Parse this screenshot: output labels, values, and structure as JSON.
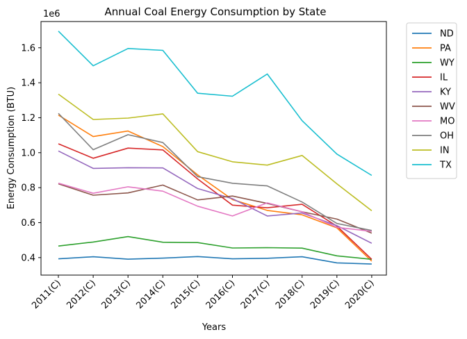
{
  "chart_data": {
    "type": "line",
    "title": "Annual Coal Energy Consumption by State",
    "xlabel": "Years",
    "ylabel": "Energy Consumption (BTU)",
    "y_offset_label": "1e6",
    "ylim": [
      0.3,
      1.75
    ],
    "y_ticks": [
      0.4,
      0.6,
      0.8,
      1.0,
      1.2,
      1.4,
      1.6
    ],
    "y_tick_labels": [
      "0.4",
      "0.6",
      "0.8",
      "1.0",
      "1.2",
      "1.4",
      "1.6"
    ],
    "grid": false,
    "legend_position": "outside-right",
    "categories": [
      "2011(C)",
      "2012(C)",
      "2013(C)",
      "2014(C)",
      "2015(C)",
      "2016(C)",
      "2017(C)",
      "2018(C)",
      "2019(C)",
      "2020(C)"
    ],
    "series": [
      {
        "name": "ND",
        "color": "#1f77b4",
        "values": [
          0.393,
          0.405,
          0.391,
          0.397,
          0.406,
          0.393,
          0.396,
          0.405,
          0.37,
          0.363
        ]
      },
      {
        "name": "PA",
        "color": "#ff7f0e",
        "values": [
          1.215,
          1.092,
          1.124,
          1.035,
          0.873,
          0.732,
          0.67,
          0.645,
          0.57,
          0.38
        ]
      },
      {
        "name": "WY",
        "color": "#2ca02c",
        "values": [
          0.466,
          0.489,
          0.52,
          0.488,
          0.486,
          0.455,
          0.457,
          0.454,
          0.41,
          0.39
        ]
      },
      {
        "name": "IL",
        "color": "#d62728",
        "values": [
          1.051,
          0.968,
          1.026,
          1.016,
          0.85,
          0.7,
          0.685,
          0.705,
          0.58,
          0.39
        ]
      },
      {
        "name": "KY",
        "color": "#9467bd",
        "values": [
          1.01,
          0.91,
          0.914,
          0.913,
          0.795,
          0.737,
          0.638,
          0.655,
          0.583,
          0.482
        ]
      },
      {
        "name": "WV",
        "color": "#8c564b",
        "values": [
          0.822,
          0.757,
          0.77,
          0.815,
          0.73,
          0.752,
          0.71,
          0.662,
          0.62,
          0.54
        ]
      },
      {
        "name": "MO",
        "color": "#e377c2",
        "values": [
          0.826,
          0.768,
          0.805,
          0.78,
          0.694,
          0.638,
          0.713,
          0.662,
          0.573,
          0.55
        ]
      },
      {
        "name": "OH",
        "color": "#7f7f7f",
        "values": [
          1.225,
          1.017,
          1.103,
          1.058,
          0.863,
          0.825,
          0.81,
          0.718,
          0.595,
          0.555
        ]
      },
      {
        "name": "IN",
        "color": "#bcbd22",
        "values": [
          1.335,
          1.19,
          1.198,
          1.222,
          1.006,
          0.948,
          0.929,
          0.984,
          0.822,
          0.668
        ]
      },
      {
        "name": "TX",
        "color": "#17becf",
        "values": [
          1.695,
          1.497,
          1.596,
          1.585,
          1.34,
          1.323,
          1.45,
          1.183,
          0.992,
          0.87
        ]
      }
    ]
  }
}
